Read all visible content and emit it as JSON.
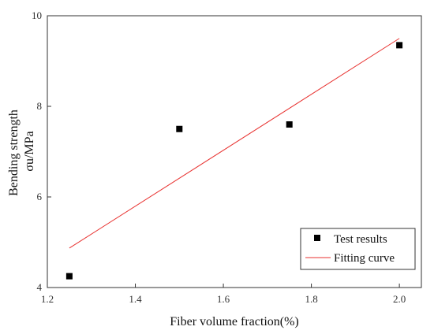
{
  "chart_data": {
    "type": "scatter",
    "xlabel": "Fiber volume fraction(%)",
    "ylabel_lines": [
      "Bending strength",
      "σu/MPa"
    ],
    "xlim": [
      1.2,
      2.05
    ],
    "ylim": [
      4,
      10
    ],
    "x_ticks": [
      "1.2",
      "1.4",
      "1.6",
      "1.8",
      "2.0"
    ],
    "y_ticks": [
      "4",
      "6",
      "8",
      "10"
    ],
    "series": [
      {
        "name": "Test results",
        "type": "scatter",
        "marker": "square",
        "color": "#000000",
        "x": [
          1.25,
          1.5,
          1.75,
          2.0
        ],
        "y": [
          4.25,
          7.5,
          7.6,
          9.35
        ]
      },
      {
        "name": "Fitting curve",
        "type": "line",
        "color": "#e8312f",
        "x": [
          1.25,
          2.0
        ],
        "y": [
          4.87,
          9.5
        ]
      }
    ],
    "legend_position": "bottom-right",
    "grid": false
  }
}
